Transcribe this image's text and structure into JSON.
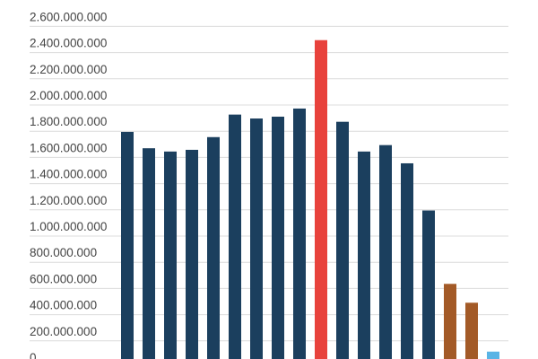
{
  "chart_data": {
    "type": "bar",
    "title": "",
    "xlabel": "",
    "ylabel": "",
    "ylim": [
      0,
      2600000000
    ],
    "grid": true,
    "legend": "none",
    "ytick_labels": [
      "0",
      "200.000.000",
      "400.000.000",
      "600.000.000",
      "800.000.000",
      "1.000.000.000",
      "1.200.000.000",
      "1.400.000.000",
      "1.600.000.000",
      "1.800.000.000",
      "2.000.000.000",
      "2.200.000.000",
      "2.400.000.000",
      "2.600.000.000"
    ],
    "ytick_values": [
      0,
      200000000,
      400000000,
      600000000,
      800000000,
      1000000000,
      1200000000,
      1400000000,
      1600000000,
      1800000000,
      2000000000,
      2200000000,
      2400000000,
      2600000000
    ],
    "values": [
      1795000000,
      1670000000,
      1645000000,
      1658000000,
      1755000000,
      1927000000,
      1897000000,
      1911000000,
      1973000000,
      2495000000,
      1872000000,
      1645000000,
      1694000000,
      1555000000,
      1195000000,
      635000000,
      491000000,
      118000000
    ],
    "bar_colors": [
      "#1b3f5e",
      "#1b3f5e",
      "#1b3f5e",
      "#1b3f5e",
      "#1b3f5e",
      "#1b3f5e",
      "#1b3f5e",
      "#1b3f5e",
      "#1b3f5e",
      "#e8423c",
      "#1b3f5e",
      "#1b3f5e",
      "#1b3f5e",
      "#1b3f5e",
      "#1b3f5e",
      "#a35a27",
      "#a35a27",
      "#5ab4e5"
    ]
  }
}
